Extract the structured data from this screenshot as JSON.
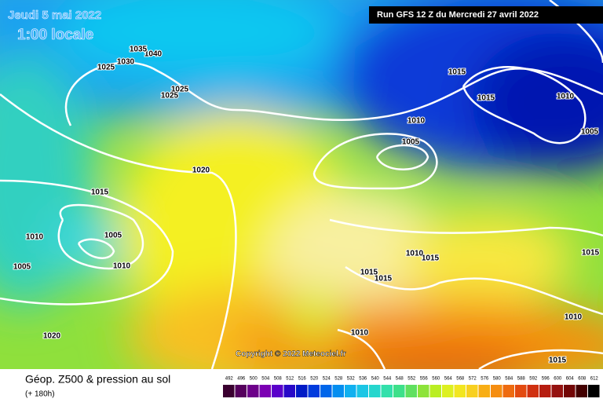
{
  "header": {
    "date": "Jeudi 5 mai 2022",
    "time": "1:00 locale",
    "run": "Run GFS 12 Z du Mercredi 27 avril 2022"
  },
  "copyright": "Copyright © 2022 Meteociel.fr",
  "footer": {
    "title": "Géop. Z500 & pression au sol",
    "lead": "(+ 180h)"
  },
  "legend": {
    "levels": [
      "492",
      "496",
      "500",
      "504",
      "508",
      "512",
      "516",
      "520",
      "524",
      "528",
      "532",
      "536",
      "540",
      "544",
      "548",
      "552",
      "556",
      "560",
      "564",
      "568",
      "572",
      "576",
      "580",
      "584",
      "588",
      "592",
      "596",
      "600",
      "604",
      "608",
      "612"
    ]
  },
  "isobars": [
    "1040",
    "1035",
    "1030",
    "1025",
    "1025",
    "1025",
    "1015",
    "1015",
    "1010",
    "1010",
    "1005",
    "1005",
    "1020",
    "1015",
    "1010",
    "1005",
    "1010",
    "1005",
    "1015",
    "1015",
    "1015",
    "1010",
    "1015",
    "1010",
    "1020",
    "1010",
    "1015"
  ]
}
